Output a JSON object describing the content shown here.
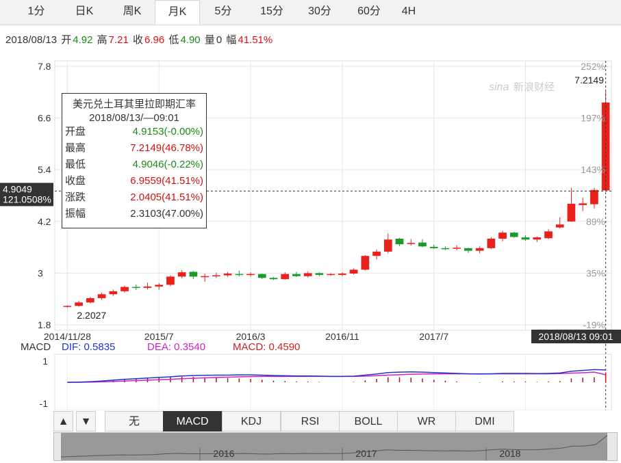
{
  "tabs": [
    "1分",
    "日K",
    "周K",
    "月K",
    "5分",
    "15分",
    "30分",
    "60分",
    "4H"
  ],
  "active_tab": "月K",
  "info": {
    "date": "2018/08/13",
    "open_label": "开",
    "open": "4.92",
    "high_label": "高",
    "high": "7.21",
    "close_label": "收",
    "close": "6.96",
    "low_label": "低",
    "low": "4.90",
    "vol_label": "量",
    "vol": "0",
    "amp_label": "幅",
    "amp": "41.51%"
  },
  "watermark": "新浪财经",
  "watermark_logo": "sina",
  "tooltip": {
    "title": "美元兑土耳其里拉即期汇率",
    "time": "2018/08/13/—09:01",
    "rows": [
      {
        "label": "开盘",
        "value": "4.9153(-0.00%)",
        "color": "#1a8a1a"
      },
      {
        "label": "最高",
        "value": "7.2149(46.78%)",
        "color": "#d11111"
      },
      {
        "label": "最低",
        "value": "4.9046(-0.22%)",
        "color": "#1a8a1a"
      },
      {
        "label": "收盘",
        "value": "6.9559(41.51%)",
        "color": "#d11111"
      },
      {
        "label": "涨跌",
        "value": "2.0405(41.51%)",
        "color": "#d11111"
      },
      {
        "label": "振幅",
        "value": "2.3103(47.00%)",
        "color": "#333333"
      }
    ]
  },
  "crosshair": {
    "price": "4.9049",
    "pct": "121.0508%",
    "time": "2018/08/13 09:01"
  },
  "chart_data": {
    "type": "candlestick",
    "y_ticks": [
      "7.8",
      "6.6",
      "5.4",
      "4.2",
      "3",
      "1.8"
    ],
    "pct_ticks": [
      "252%",
      "197%",
      "143%",
      "89%",
      "35%",
      "-19%"
    ],
    "x_ticks": [
      "2014/11/28",
      "2015/7",
      "2016/3",
      "2016/11",
      "2017/7"
    ],
    "ylim": [
      1.8,
      7.8
    ],
    "first_low_label": "2.2027",
    "max_label": "7.2149",
    "grid": true,
    "candles": [
      {
        "o": 2.22,
        "h": 2.25,
        "l": 2.2,
        "c": 2.24
      },
      {
        "o": 2.24,
        "h": 2.36,
        "l": 2.22,
        "c": 2.32
      },
      {
        "o": 2.32,
        "h": 2.45,
        "l": 2.3,
        "c": 2.42
      },
      {
        "o": 2.42,
        "h": 2.55,
        "l": 2.38,
        "c": 2.51
      },
      {
        "o": 2.51,
        "h": 2.62,
        "l": 2.47,
        "c": 2.58
      },
      {
        "o": 2.58,
        "h": 2.71,
        "l": 2.55,
        "c": 2.68
      },
      {
        "o": 2.68,
        "h": 2.74,
        "l": 2.61,
        "c": 2.66
      },
      {
        "o": 2.66,
        "h": 2.78,
        "l": 2.62,
        "c": 2.69
      },
      {
        "o": 2.69,
        "h": 2.77,
        "l": 2.62,
        "c": 2.73
      },
      {
        "o": 2.73,
        "h": 2.95,
        "l": 2.7,
        "c": 2.92
      },
      {
        "o": 2.92,
        "h": 3.07,
        "l": 2.88,
        "c": 3.02
      },
      {
        "o": 3.03,
        "h": 3.05,
        "l": 2.86,
        "c": 2.92
      },
      {
        "o": 2.92,
        "h": 2.99,
        "l": 2.8,
        "c": 2.93
      },
      {
        "o": 2.93,
        "h": 3.01,
        "l": 2.89,
        "c": 2.95
      },
      {
        "o": 2.95,
        "h": 3.03,
        "l": 2.91,
        "c": 2.99
      },
      {
        "o": 2.98,
        "h": 3.06,
        "l": 2.92,
        "c": 2.96
      },
      {
        "o": 2.96,
        "h": 3.02,
        "l": 2.92,
        "c": 2.98
      },
      {
        "o": 2.98,
        "h": 2.99,
        "l": 2.86,
        "c": 2.89
      },
      {
        "o": 2.89,
        "h": 2.91,
        "l": 2.84,
        "c": 2.86
      },
      {
        "o": 2.86,
        "h": 3.02,
        "l": 2.85,
        "c": 2.98
      },
      {
        "o": 2.98,
        "h": 3.03,
        "l": 2.91,
        "c": 2.93
      },
      {
        "o": 2.93,
        "h": 3.04,
        "l": 2.9,
        "c": 3.0
      },
      {
        "o": 3.0,
        "h": 3.02,
        "l": 2.93,
        "c": 2.96
      },
      {
        "o": 2.96,
        "h": 3.0,
        "l": 2.94,
        "c": 2.98
      },
      {
        "o": 2.96,
        "h": 3.02,
        "l": 2.93,
        "c": 2.99
      },
      {
        "o": 2.99,
        "h": 3.11,
        "l": 2.97,
        "c": 3.08
      },
      {
        "o": 3.08,
        "h": 3.42,
        "l": 3.06,
        "c": 3.4
      },
      {
        "o": 3.4,
        "h": 3.55,
        "l": 3.32,
        "c": 3.5
      },
      {
        "o": 3.5,
        "h": 3.92,
        "l": 3.46,
        "c": 3.78
      },
      {
        "o": 3.8,
        "h": 3.82,
        "l": 3.63,
        "c": 3.67
      },
      {
        "o": 3.7,
        "h": 3.79,
        "l": 3.64,
        "c": 3.7
      },
      {
        "o": 3.71,
        "h": 3.79,
        "l": 3.6,
        "c": 3.62
      },
      {
        "o": 3.61,
        "h": 3.66,
        "l": 3.56,
        "c": 3.58
      },
      {
        "o": 3.58,
        "h": 3.62,
        "l": 3.53,
        "c": 3.57
      },
      {
        "o": 3.57,
        "h": 3.65,
        "l": 3.53,
        "c": 3.59
      },
      {
        "o": 3.58,
        "h": 3.59,
        "l": 3.47,
        "c": 3.52
      },
      {
        "o": 3.52,
        "h": 3.62,
        "l": 3.46,
        "c": 3.58
      },
      {
        "o": 3.58,
        "h": 3.84,
        "l": 3.56,
        "c": 3.8
      },
      {
        "o": 3.8,
        "h": 3.98,
        "l": 3.74,
        "c": 3.94
      },
      {
        "o": 3.94,
        "h": 3.96,
        "l": 3.82,
        "c": 3.84
      },
      {
        "o": 3.83,
        "h": 3.88,
        "l": 3.75,
        "c": 3.78
      },
      {
        "o": 3.78,
        "h": 3.85,
        "l": 3.72,
        "c": 3.83
      },
      {
        "o": 3.81,
        "h": 4.02,
        "l": 3.79,
        "c": 3.97
      },
      {
        "o": 4.06,
        "h": 4.3,
        "l": 4.04,
        "c": 4.13
      },
      {
        "o": 4.2,
        "h": 4.98,
        "l": 4.19,
        "c": 4.61
      },
      {
        "o": 4.58,
        "h": 4.75,
        "l": 4.44,
        "c": 4.62
      },
      {
        "o": 4.6,
        "h": 4.98,
        "l": 4.5,
        "c": 4.93
      },
      {
        "o": 4.92,
        "h": 7.21,
        "l": 4.9,
        "c": 6.96
      }
    ]
  },
  "macd": {
    "title": "MACD",
    "dif_label": "DIF: 0.5835",
    "dea_label": "DEA: 0.3540",
    "macd_label": "MACD: 0.4590",
    "y_ticks": [
      "1",
      "-1"
    ],
    "dif_color": "#2233cc",
    "dea_color": "#cc22cc",
    "dif": [
      0.0,
      0.01,
      0.03,
      0.06,
      0.1,
      0.14,
      0.17,
      0.2,
      0.23,
      0.26,
      0.3,
      0.32,
      0.33,
      0.34,
      0.34,
      0.35,
      0.35,
      0.34,
      0.32,
      0.31,
      0.3,
      0.3,
      0.29,
      0.28,
      0.28,
      0.29,
      0.34,
      0.39,
      0.46,
      0.48,
      0.49,
      0.48,
      0.46,
      0.44,
      0.42,
      0.4,
      0.39,
      0.4,
      0.42,
      0.42,
      0.42,
      0.41,
      0.42,
      0.44,
      0.52,
      0.56,
      0.6,
      0.58
    ],
    "dea": [
      0.0,
      0.0,
      0.01,
      0.02,
      0.04,
      0.06,
      0.08,
      0.1,
      0.12,
      0.14,
      0.17,
      0.19,
      0.21,
      0.23,
      0.24,
      0.26,
      0.27,
      0.28,
      0.28,
      0.28,
      0.28,
      0.28,
      0.28,
      0.28,
      0.28,
      0.28,
      0.29,
      0.31,
      0.34,
      0.36,
      0.38,
      0.39,
      0.4,
      0.4,
      0.4,
      0.4,
      0.4,
      0.4,
      0.4,
      0.4,
      0.4,
      0.4,
      0.4,
      0.41,
      0.43,
      0.45,
      0.48,
      0.354
    ],
    "hist": [
      0.0,
      0.02,
      0.04,
      0.08,
      0.12,
      0.16,
      0.18,
      0.2,
      0.22,
      0.24,
      0.26,
      0.26,
      0.24,
      0.22,
      0.2,
      0.18,
      0.16,
      0.12,
      0.08,
      0.06,
      0.04,
      0.04,
      0.02,
      0.0,
      0.0,
      0.02,
      0.1,
      0.16,
      0.24,
      0.24,
      0.22,
      0.18,
      0.12,
      0.08,
      0.04,
      0.0,
      -0.02,
      0.0,
      0.04,
      0.04,
      0.04,
      0.02,
      0.04,
      0.06,
      0.18,
      0.22,
      0.24,
      0.459
    ]
  },
  "indicators": [
    "无",
    "MACD",
    "KDJ",
    "RSI",
    "BOLL",
    "WR",
    "DMI"
  ],
  "active_indicator": "MACD",
  "up_arrow": "▲",
  "down_arrow": "▼",
  "navigator_years": [
    "2016",
    "2017",
    "2018"
  ],
  "colors": {
    "up": "#e8211c",
    "down": "#1a9a2a"
  }
}
